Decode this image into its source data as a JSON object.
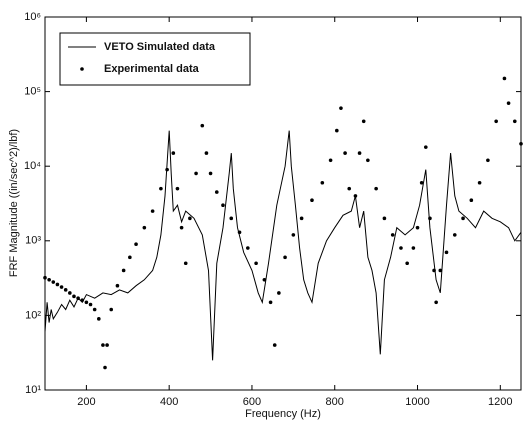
{
  "chart_data": {
    "type": "line",
    "xlabel": "Frequency (Hz)",
    "ylabel": "FRF Magnitude ((in/sec^2)/lbf)",
    "xlim": [
      100,
      1250
    ],
    "xticks": [
      200,
      400,
      600,
      800,
      1000,
      1200
    ],
    "ylim": [
      10,
      1000000
    ],
    "yscale": "log",
    "yticks": [
      {
        "value": 10,
        "label": "10¹"
      },
      {
        "value": 100,
        "label": "10²"
      },
      {
        "value": 1000,
        "label": "10³"
      },
      {
        "value": 10000,
        "label": "10⁴"
      },
      {
        "value": 100000,
        "label": "10⁵"
      },
      {
        "value": 1000000,
        "label": "10⁶"
      }
    ],
    "legend": "upper left",
    "series": [
      {
        "name": "VETO Simulated data",
        "style": "line",
        "color": "#000000",
        "x": [
          100,
          105,
          110,
          115,
          120,
          130,
          140,
          150,
          160,
          170,
          180,
          190,
          200,
          220,
          240,
          260,
          280,
          300,
          320,
          340,
          360,
          370,
          380,
          390,
          400,
          405,
          410,
          420,
          430,
          440,
          460,
          480,
          495,
          505,
          515,
          530,
          545,
          550,
          555,
          565,
          580,
          600,
          615,
          625,
          640,
          660,
          680,
          690,
          695,
          705,
          715,
          725,
          735,
          745,
          760,
          780,
          800,
          820,
          840,
          850,
          860,
          870,
          880,
          890,
          900,
          910,
          920,
          935,
          950,
          970,
          990,
          1005,
          1020,
          1030,
          1045,
          1055,
          1070,
          1080,
          1090,
          1100,
          1120,
          1140,
          1160,
          1180,
          1200,
          1220,
          1235,
          1250
        ],
        "values": [
          60,
          150,
          80,
          120,
          90,
          110,
          140,
          120,
          160,
          130,
          170,
          150,
          190,
          170,
          200,
          190,
          220,
          200,
          250,
          300,
          400,
          600,
          1200,
          4000,
          30000,
          8000,
          2500,
          3000,
          1800,
          2500,
          2000,
          1200,
          400,
          25,
          500,
          1500,
          8000,
          15000,
          5000,
          1500,
          700,
          400,
          200,
          150,
          500,
          3000,
          10000,
          30000,
          10000,
          3000,
          800,
          300,
          200,
          150,
          500,
          1000,
          1500,
          2200,
          2500,
          4000,
          1500,
          2500,
          600,
          400,
          200,
          30,
          300,
          600,
          1500,
          1200,
          1500,
          3000,
          9000,
          1500,
          300,
          200,
          3000,
          15000,
          4000,
          2500,
          2000,
          1500,
          2500,
          2000,
          1800,
          1500,
          1000,
          1300
        ]
      },
      {
        "name": "Experimental data",
        "style": "markers",
        "color": "#000000",
        "x": [
          100,
          110,
          120,
          130,
          140,
          150,
          160,
          170,
          180,
          190,
          200,
          210,
          220,
          230,
          240,
          245,
          250,
          260,
          275,
          290,
          305,
          320,
          340,
          360,
          380,
          395,
          410,
          420,
          430,
          440,
          450,
          465,
          480,
          490,
          500,
          515,
          530,
          550,
          570,
          590,
          610,
          630,
          645,
          655,
          665,
          680,
          700,
          720,
          745,
          770,
          790,
          805,
          815,
          825,
          835,
          850,
          860,
          870,
          880,
          900,
          920,
          940,
          960,
          975,
          990,
          1000,
          1010,
          1020,
          1030,
          1040,
          1045,
          1055,
          1070,
          1090,
          1110,
          1130,
          1150,
          1170,
          1190,
          1210,
          1220,
          1235,
          1250
        ],
        "values": [
          320,
          300,
          280,
          260,
          240,
          220,
          200,
          180,
          170,
          160,
          150,
          140,
          120,
          90,
          40,
          20,
          40,
          120,
          250,
          400,
          600,
          900,
          1500,
          2500,
          5000,
          9000,
          15000,
          5000,
          1500,
          500,
          2000,
          8000,
          35000,
          15000,
          8000,
          4500,
          3000,
          2000,
          1300,
          800,
          500,
          300,
          150,
          40,
          200,
          600,
          1200,
          2000,
          3500,
          6000,
          12000,
          30000,
          60000,
          15000,
          5000,
          4000,
          15000,
          40000,
          12000,
          5000,
          2000,
          1200,
          800,
          500,
          800,
          1500,
          6000,
          18000,
          2000,
          400,
          150,
          400,
          700,
          1200,
          2000,
          3500,
          6000,
          12000,
          40000,
          150000,
          70000,
          40000,
          20000
        ]
      }
    ]
  }
}
